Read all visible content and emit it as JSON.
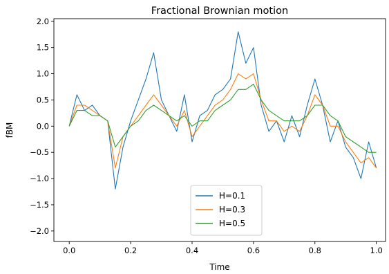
{
  "chart_data": {
    "type": "line",
    "title": "Fractional Brownian motion",
    "xlabel": "Time",
    "ylabel": "fBM",
    "xlim": [
      -0.05,
      1.03
    ],
    "ylim": [
      -2.2,
      2.05
    ],
    "xticks": [
      0.0,
      0.2,
      0.4,
      0.6,
      0.8,
      1.0
    ],
    "xtick_labels": [
      "0.0",
      "0.2",
      "0.4",
      "0.6",
      "0.8",
      "1.0"
    ],
    "yticks": [
      -2.0,
      -1.5,
      -1.0,
      -0.5,
      0.0,
      0.5,
      1.0,
      1.5,
      2.0
    ],
    "ytick_labels": [
      "−2.0",
      "−1.5",
      "−1.0",
      "−0.5",
      "0.0",
      "0.5",
      "1.0",
      "1.5",
      "2.0"
    ],
    "grid": false,
    "legend": {
      "position": "lower-center"
    },
    "series": [
      {
        "name": "H=0.1",
        "color": "#1f77b4",
        "x": [
          0.0,
          0.025,
          0.05,
          0.075,
          0.1,
          0.125,
          0.15,
          0.175,
          0.2,
          0.225,
          0.25,
          0.275,
          0.3,
          0.325,
          0.35,
          0.375,
          0.4,
          0.425,
          0.45,
          0.475,
          0.5,
          0.525,
          0.55,
          0.575,
          0.6,
          0.625,
          0.65,
          0.675,
          0.7,
          0.725,
          0.75,
          0.775,
          0.8,
          0.825,
          0.85,
          0.875,
          0.9,
          0.925,
          0.95,
          0.975,
          1.0
        ],
        "y": [
          0.0,
          0.6,
          0.3,
          0.4,
          0.2,
          0.1,
          -1.2,
          -0.4,
          0.1,
          0.5,
          0.9,
          1.4,
          0.5,
          0.2,
          -0.1,
          0.6,
          -0.3,
          0.2,
          0.3,
          0.6,
          0.7,
          0.9,
          1.8,
          1.2,
          1.5,
          0.4,
          -0.1,
          0.1,
          -0.3,
          0.2,
          -0.2,
          0.4,
          0.9,
          0.4,
          -0.3,
          0.1,
          -0.4,
          -0.6,
          -1.0,
          -0.3,
          -0.8
        ]
      },
      {
        "name": "H=0.3",
        "color": "#ff7f0e",
        "x": [
          0.0,
          0.025,
          0.05,
          0.075,
          0.1,
          0.125,
          0.15,
          0.175,
          0.2,
          0.225,
          0.25,
          0.275,
          0.3,
          0.325,
          0.35,
          0.375,
          0.4,
          0.425,
          0.45,
          0.475,
          0.5,
          0.525,
          0.55,
          0.575,
          0.6,
          0.625,
          0.65,
          0.675,
          0.7,
          0.725,
          0.75,
          0.775,
          0.8,
          0.825,
          0.85,
          0.875,
          0.9,
          0.925,
          0.95,
          0.975,
          1.0
        ],
        "y": [
          0.0,
          0.4,
          0.4,
          0.3,
          0.2,
          0.1,
          -0.8,
          -0.2,
          0.0,
          0.2,
          0.4,
          0.6,
          0.4,
          0.2,
          0.0,
          0.3,
          -0.2,
          0.0,
          0.2,
          0.4,
          0.5,
          0.7,
          1.0,
          0.9,
          1.0,
          0.5,
          0.1,
          0.1,
          -0.1,
          0.0,
          -0.1,
          0.2,
          0.6,
          0.4,
          0.0,
          0.0,
          -0.3,
          -0.5,
          -0.7,
          -0.6,
          -0.8
        ]
      },
      {
        "name": "H=0.5",
        "color": "#2ca02c",
        "x": [
          0.0,
          0.025,
          0.05,
          0.075,
          0.1,
          0.125,
          0.15,
          0.175,
          0.2,
          0.225,
          0.25,
          0.275,
          0.3,
          0.325,
          0.35,
          0.375,
          0.4,
          0.425,
          0.45,
          0.475,
          0.5,
          0.525,
          0.55,
          0.575,
          0.6,
          0.625,
          0.65,
          0.675,
          0.7,
          0.725,
          0.75,
          0.775,
          0.8,
          0.825,
          0.85,
          0.875,
          0.9,
          0.925,
          0.95,
          0.975,
          1.0
        ],
        "y": [
          0.0,
          0.3,
          0.3,
          0.2,
          0.2,
          0.1,
          -0.4,
          -0.2,
          0.0,
          0.1,
          0.3,
          0.4,
          0.3,
          0.2,
          0.1,
          0.2,
          0.0,
          0.1,
          0.1,
          0.3,
          0.4,
          0.5,
          0.7,
          0.7,
          0.8,
          0.5,
          0.3,
          0.2,
          0.1,
          0.1,
          0.1,
          0.2,
          0.4,
          0.4,
          0.2,
          0.1,
          -0.2,
          -0.3,
          -0.4,
          -0.5,
          -0.5
        ]
      }
    ]
  }
}
